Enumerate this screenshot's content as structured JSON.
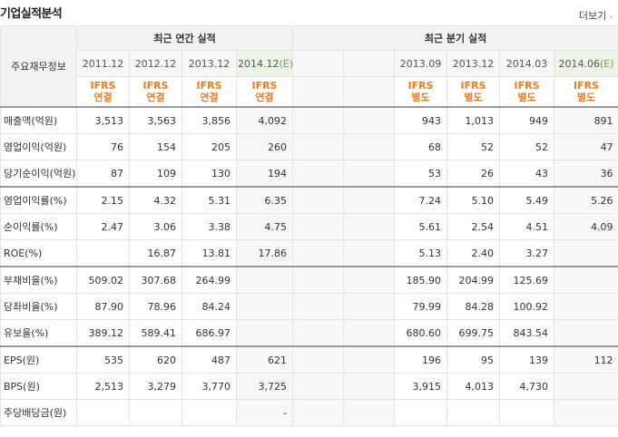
{
  "title": "기업실적분석",
  "more_label": "더보기",
  "more_arrow": "›",
  "header": {
    "corner": "주요재무정보",
    "annual_group": "최근 연간 실적",
    "quarter_group": "최근 분기 실적",
    "annual_periods": [
      "2011.12",
      "2012.12",
      "2013.12",
      "2014.12"
    ],
    "annual_estimate_suffix": "(E)",
    "quarter_periods": [
      "2013.09",
      "2013.12",
      "2014.03",
      "2014.06"
    ],
    "quarter_estimate_suffix": "(E)",
    "annual_ifrs": [
      [
        "IFRS",
        "연결"
      ],
      [
        "IFRS",
        "연결"
      ],
      [
        "IFRS",
        "연결"
      ],
      [
        "IFRS",
        "연결"
      ]
    ],
    "quarter_ifrs": [
      [
        "IFRS",
        "별도"
      ],
      [
        "IFRS",
        "별도"
      ],
      [
        "IFRS",
        "별도"
      ],
      [
        "IFRS",
        "별도"
      ]
    ]
  },
  "rows": [
    {
      "label": "매출액(억원)",
      "annual": [
        "3,513",
        "3,563",
        "3,856",
        "4,092"
      ],
      "quarter": [
        "943",
        "1,013",
        "949",
        "891"
      ]
    },
    {
      "label": "영업이익(억원)",
      "annual": [
        "76",
        "154",
        "205",
        "260"
      ],
      "quarter": [
        "68",
        "52",
        "52",
        "47"
      ]
    },
    {
      "label": "당기순이익(억원)",
      "annual": [
        "87",
        "109",
        "130",
        "194"
      ],
      "quarter": [
        "53",
        "26",
        "43",
        "36"
      ]
    },
    {
      "label": "영업이익률(%)",
      "annual": [
        "2.15",
        "4.32",
        "5.31",
        "6.35"
      ],
      "quarter": [
        "7.24",
        "5.10",
        "5.49",
        "5.26"
      ]
    },
    {
      "label": "순이익률(%)",
      "annual": [
        "2.47",
        "3.06",
        "3.38",
        "4.75"
      ],
      "quarter": [
        "5.61",
        "2.54",
        "4.51",
        "4.09"
      ]
    },
    {
      "label": "ROE(%)",
      "annual": [
        "",
        "16.87",
        "13.81",
        "17.86"
      ],
      "quarter": [
        "5.13",
        "2.40",
        "3.27",
        ""
      ]
    },
    {
      "label": "부채비율(%)",
      "annual": [
        "509.02",
        "307.68",
        "264.99",
        ""
      ],
      "quarter": [
        "185.90",
        "204.99",
        "125.69",
        ""
      ]
    },
    {
      "label": "당좌비율(%)",
      "annual": [
        "87.90",
        "78.96",
        "84.24",
        ""
      ],
      "quarter": [
        "79.99",
        "84.28",
        "100.92",
        ""
      ]
    },
    {
      "label": "유보율(%)",
      "annual": [
        "389.12",
        "589.41",
        "686.97",
        ""
      ],
      "quarter": [
        "680.60",
        "699.75",
        "843.54",
        ""
      ]
    },
    {
      "label": "EPS(원)",
      "annual": [
        "535",
        "620",
        "487",
        "621"
      ],
      "quarter": [
        "196",
        "95",
        "139",
        "112"
      ]
    },
    {
      "label": "BPS(원)",
      "annual": [
        "2,513",
        "3,279",
        "3,770",
        "3,725"
      ],
      "quarter": [
        "3,915",
        "4,013",
        "4,730",
        ""
      ]
    },
    {
      "label": "주당배당금(원)",
      "annual": [
        "",
        "",
        "",
        "-"
      ],
      "quarter": [
        "",
        "",
        "",
        ""
      ]
    }
  ],
  "colors": {
    "ifrs": "#f07b1d",
    "estimate_mark": "#6aa84f",
    "group_divider": "#9a9a9a"
  }
}
